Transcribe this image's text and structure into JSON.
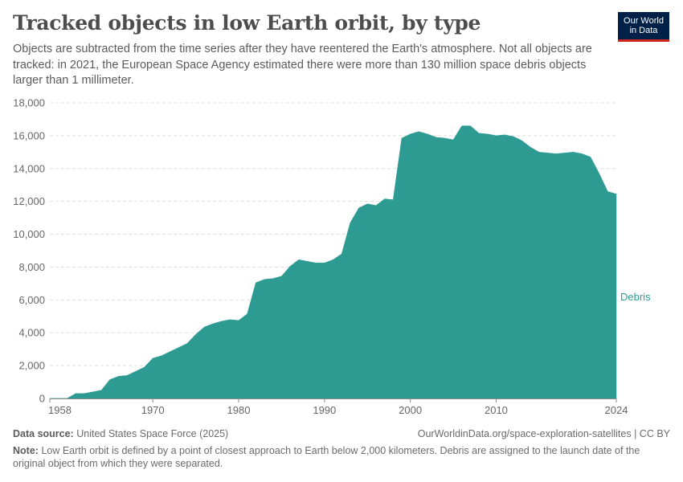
{
  "header": {
    "title": "Tracked objects in low Earth orbit, by type",
    "subtitle": "Objects are subtracted from the time series after they have reentered the Earth's atmosphere. Not all objects are tracked: in 2021, the European Space Agency estimated there were more than 130 million space debris objects larger than 1 millimeter.",
    "logo_line1": "Our World",
    "logo_line2": "in Data"
  },
  "colors": {
    "series": "#2e9b93",
    "grid": "#dddddd",
    "axis": "#8a8a8a"
  },
  "chart_data": {
    "type": "area",
    "title": "Tracked objects in low Earth orbit, by type",
    "xlabel": "",
    "ylabel": "",
    "xlim": [
      1958,
      2024
    ],
    "ylim": [
      0,
      18000
    ],
    "y_ticks": [
      0,
      2000,
      4000,
      6000,
      8000,
      10000,
      12000,
      14000,
      16000,
      18000
    ],
    "y_tick_labels": [
      "0",
      "2,000",
      "4,000",
      "6,000",
      "8,000",
      "10,000",
      "12,000",
      "14,000",
      "16,000",
      "18,000"
    ],
    "x_ticks": [
      1958,
      1970,
      1980,
      1990,
      2000,
      2010,
      2024
    ],
    "x_tick_labels": [
      "1958",
      "1970",
      "1980",
      "1990",
      "2000",
      "2010",
      "2024"
    ],
    "grid": true,
    "series": [
      {
        "name": "Debris",
        "x": [
          1958,
          1959,
          1960,
          1961,
          1962,
          1963,
          1964,
          1965,
          1966,
          1967,
          1968,
          1969,
          1970,
          1971,
          1972,
          1973,
          1974,
          1975,
          1976,
          1977,
          1978,
          1979,
          1980,
          1981,
          1982,
          1983,
          1984,
          1985,
          1986,
          1987,
          1988,
          1989,
          1990,
          1991,
          1992,
          1993,
          1994,
          1995,
          1996,
          1997,
          1998,
          1999,
          2000,
          2001,
          2002,
          2003,
          2004,
          2005,
          2006,
          2007,
          2008,
          2009,
          2010,
          2011,
          2012,
          2013,
          2014,
          2015,
          2016,
          2017,
          2018,
          2019,
          2020,
          2021,
          2022,
          2023,
          2024
        ],
        "values": [
          0,
          0,
          0,
          300,
          300,
          400,
          500,
          1150,
          1350,
          1400,
          1650,
          1900,
          2450,
          2600,
          2850,
          3100,
          3350,
          3900,
          4350,
          4550,
          4700,
          4800,
          4750,
          5150,
          7050,
          7250,
          7300,
          7450,
          8050,
          8450,
          8350,
          8250,
          8250,
          8450,
          8800,
          10700,
          11600,
          11850,
          11750,
          12150,
          12100,
          15850,
          16100,
          16250,
          16100,
          15900,
          15850,
          15750,
          16600,
          16600,
          16150,
          16100,
          16000,
          16050,
          15950,
          15700,
          15300,
          15000,
          14950,
          14900,
          14950,
          15000,
          14900,
          14700,
          13700,
          12600,
          12450
        ]
      }
    ],
    "legend_placement": "right, at series end"
  },
  "footer": {
    "source_label": "Data source:",
    "source_text": "United States Space Force (2025)",
    "url_text": "OurWorldinData.org/space-exploration-satellites | CC BY",
    "note_label": "Note:",
    "note_text": "Low Earth orbit is defined by a point of closest approach to Earth below 2,000 kilometers. Debris are assigned to the launch date of the original object from which they were separated."
  }
}
